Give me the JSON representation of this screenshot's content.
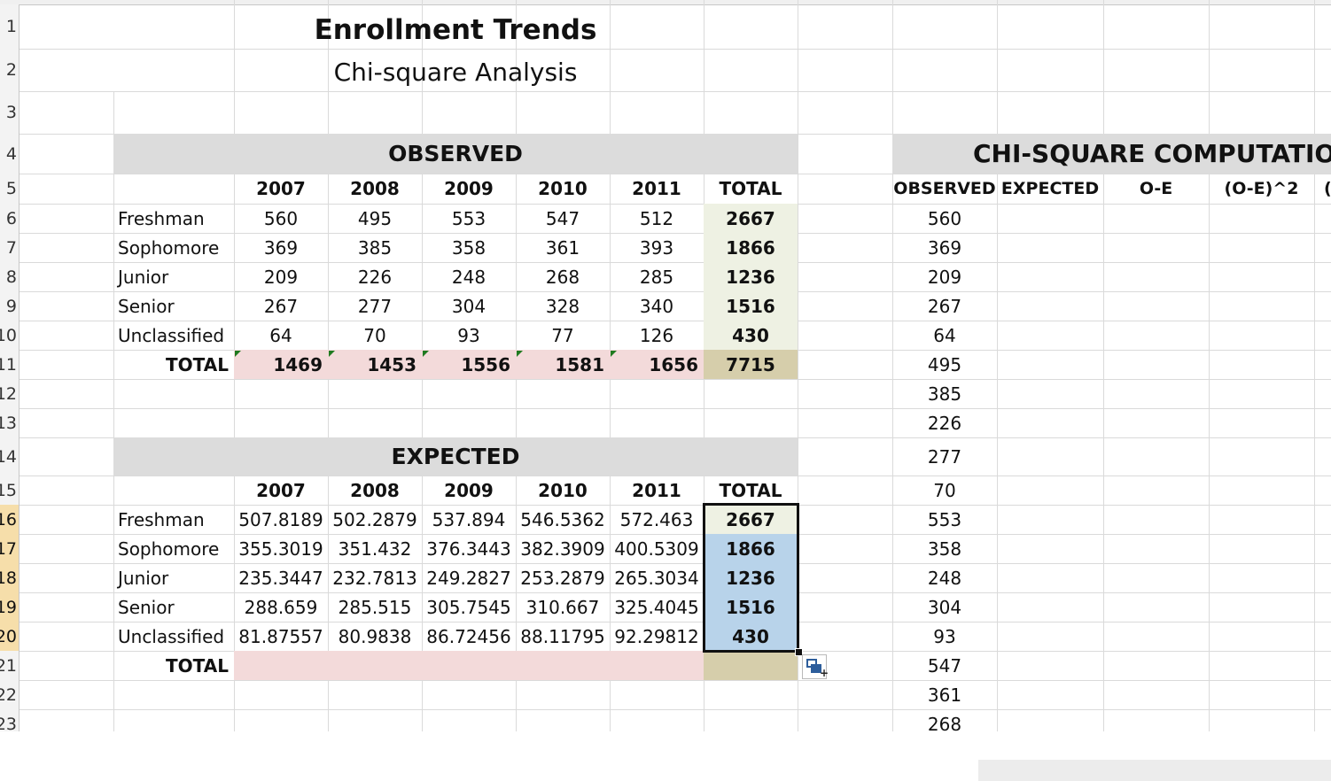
{
  "sheet": {
    "title": "Enrollment Trends",
    "subtitle": "Chi-square Analysis"
  },
  "row_numbers": [
    "1",
    "2",
    "3",
    "4",
    "5",
    "6",
    "7",
    "8",
    "9",
    "10",
    "11",
    "12",
    "13",
    "14",
    "15",
    "16",
    "17",
    "18",
    "19",
    "20",
    "21",
    "22",
    "23"
  ],
  "observed": {
    "header": "OBSERVED",
    "years": [
      "2007",
      "2008",
      "2009",
      "2010",
      "2011"
    ],
    "total_label": "TOTAL",
    "rows": [
      {
        "label": "Freshman",
        "values": [
          "560",
          "495",
          "553",
          "547",
          "512"
        ],
        "total": "2667"
      },
      {
        "label": "Sophomore",
        "values": [
          "369",
          "385",
          "358",
          "361",
          "393"
        ],
        "total": "1866"
      },
      {
        "label": "Junior",
        "values": [
          "209",
          "226",
          "248",
          "268",
          "285"
        ],
        "total": "1236"
      },
      {
        "label": "Senior",
        "values": [
          "267",
          "277",
          "304",
          "328",
          "340"
        ],
        "total": "1516"
      },
      {
        "label": "Unclassified",
        "values": [
          "64",
          "70",
          "93",
          "77",
          "126"
        ],
        "total": "430"
      }
    ],
    "totals_row": {
      "label": "TOTAL",
      "values": [
        "1469",
        "1453",
        "1556",
        "1581",
        "1656"
      ],
      "grand": "7715"
    }
  },
  "expected": {
    "header": "EXPECTED",
    "years": [
      "2007",
      "2008",
      "2009",
      "2010",
      "2011"
    ],
    "total_label": "TOTAL",
    "rows": [
      {
        "label": "Freshman",
        "values": [
          "507.8189",
          "502.2879",
          "537.894",
          "546.5362",
          "572.463"
        ],
        "total": "2667"
      },
      {
        "label": "Sophomore",
        "values": [
          "355.3019",
          "351.432",
          "376.3443",
          "382.3909",
          "400.5309"
        ],
        "total": "1866"
      },
      {
        "label": "Junior",
        "values": [
          "235.3447",
          "232.7813",
          "249.2827",
          "253.2879",
          "265.3034"
        ],
        "total": "1236"
      },
      {
        "label": "Senior",
        "values": [
          "288.659",
          "285.515",
          "305.7545",
          "310.667",
          "325.4045"
        ],
        "total": "1516"
      },
      {
        "label": "Unclassified",
        "values": [
          "81.87557",
          "80.9838",
          "86.72456",
          "88.11795",
          "92.29812"
        ],
        "total": "430"
      }
    ],
    "totals_row": {
      "label": "TOTAL"
    }
  },
  "chi_square": {
    "header": "CHI-SQUARE COMPUTATION",
    "columns": [
      "OBSERVED",
      "EXPECTED",
      "O-E",
      "(O-E)^2",
      "("
    ],
    "observed_values": [
      "560",
      "369",
      "209",
      "267",
      "64",
      "495",
      "385",
      "226",
      "277",
      "70",
      "553",
      "358",
      "248",
      "304",
      "93",
      "547",
      "361",
      "268"
    ]
  }
}
